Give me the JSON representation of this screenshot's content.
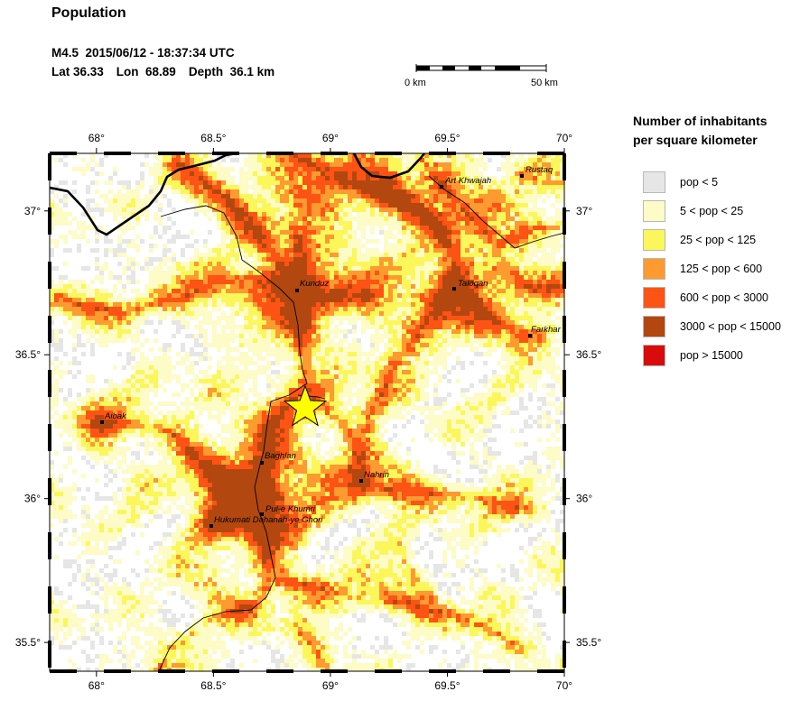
{
  "title": "Population",
  "event": {
    "line1": "M4.5  2015/06/12 - 18:37:34 UTC",
    "lat": "Lat 36.33",
    "lon": "Lon  68.89",
    "depth": "Depth  36.1 km"
  },
  "scale": {
    "left_label": "0 km",
    "right_label": "50 km"
  },
  "legend": {
    "title_line1": "Number of inhabitants",
    "title_line2": "per square kilometer",
    "items": [
      {
        "label": "pop < 5",
        "color": "#e6e6e6"
      },
      {
        "label": "5 < pop < 25",
        "color": "#fdfbc6"
      },
      {
        "label": "25 < pop < 125",
        "color": "#fbf75a"
      },
      {
        "label": "125 < pop < 600",
        "color": "#fd9a30"
      },
      {
        "label": "600 < pop < 3000",
        "color": "#fd5314"
      },
      {
        "label": "3000 < pop < 15000",
        "color": "#b2480f"
      },
      {
        "label": "pop > 15000",
        "color": "#d80c0c"
      }
    ]
  },
  "map": {
    "lon_ticks": [
      "68°",
      "68.5°",
      "69°",
      "69.5°",
      "70°"
    ],
    "lat_ticks": [
      "37°",
      "36.5°",
      "36°",
      "35.5°"
    ],
    "epicenter_color": "#ffff00",
    "cities": [
      {
        "name": "Rustaq"
      },
      {
        "name": "Art Khwajah"
      },
      {
        "name": "Kunduz"
      },
      {
        "name": "Taloqan"
      },
      {
        "name": "Farkhar"
      },
      {
        "name": "Aibak"
      },
      {
        "name": "Baghlan"
      },
      {
        "name": "Nahrin"
      },
      {
        "name": "Pul-e Khumri"
      },
      {
        "name": "Hukumati Dahanah-ye Ghori"
      }
    ]
  }
}
